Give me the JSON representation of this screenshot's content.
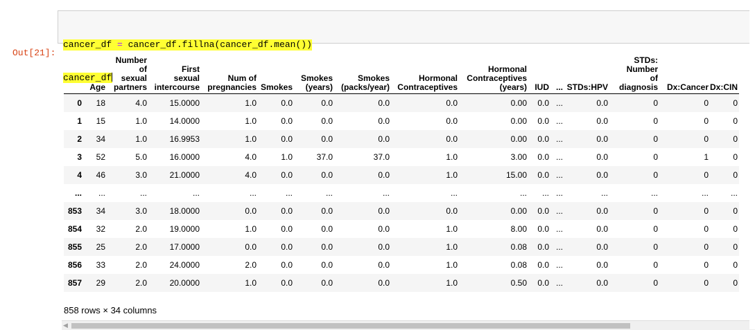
{
  "cell": {
    "line1_prefix": "cancer_df ",
    "line1_op": "=",
    "line1_rest": " cancer_df.fillna(cancer_df.mean())",
    "line2": "cancer_df"
  },
  "out_prompt": "Out[21]:",
  "table": {
    "headers": [
      {
        "lines": [
          ""
        ]
      },
      {
        "lines": [
          "Age"
        ]
      },
      {
        "lines": [
          "Number",
          "of",
          "sexual",
          "partners"
        ]
      },
      {
        "lines": [
          "First",
          "sexual",
          "intercourse"
        ]
      },
      {
        "lines": [
          "Num of",
          "pregnancies"
        ]
      },
      {
        "lines": [
          "Smokes"
        ]
      },
      {
        "lines": [
          "Smokes",
          "(years)"
        ]
      },
      {
        "lines": [
          "Smokes",
          "(packs/year)"
        ]
      },
      {
        "lines": [
          "Hormonal",
          "Contraceptives"
        ]
      },
      {
        "lines": [
          "Hormonal",
          "Contraceptives",
          "(years)"
        ]
      },
      {
        "lines": [
          "IUD"
        ]
      },
      {
        "lines": [
          "..."
        ]
      },
      {
        "lines": [
          "STDs:HPV"
        ]
      },
      {
        "lines": [
          "STDs:",
          "Number",
          "of",
          "diagnosis"
        ]
      },
      {
        "lines": [
          "Dx:Cancer"
        ]
      },
      {
        "lines": [
          "Dx:CIN"
        ]
      }
    ],
    "rows": [
      [
        "0",
        "18",
        "4.0",
        "15.0000",
        "1.0",
        "0.0",
        "0.0",
        "0.0",
        "0.0",
        "0.00",
        "0.0",
        "...",
        "0.0",
        "0",
        "0",
        "0"
      ],
      [
        "1",
        "15",
        "1.0",
        "14.0000",
        "1.0",
        "0.0",
        "0.0",
        "0.0",
        "0.0",
        "0.00",
        "0.0",
        "...",
        "0.0",
        "0",
        "0",
        "0"
      ],
      [
        "2",
        "34",
        "1.0",
        "16.9953",
        "1.0",
        "0.0",
        "0.0",
        "0.0",
        "0.0",
        "0.00",
        "0.0",
        "...",
        "0.0",
        "0",
        "0",
        "0"
      ],
      [
        "3",
        "52",
        "5.0",
        "16.0000",
        "4.0",
        "1.0",
        "37.0",
        "37.0",
        "1.0",
        "3.00",
        "0.0",
        "...",
        "0.0",
        "0",
        "1",
        "0"
      ],
      [
        "4",
        "46",
        "3.0",
        "21.0000",
        "4.0",
        "0.0",
        "0.0",
        "0.0",
        "1.0",
        "15.00",
        "0.0",
        "...",
        "0.0",
        "0",
        "0",
        "0"
      ],
      [
        "...",
        "...",
        "...",
        "...",
        "...",
        "...",
        "...",
        "...",
        "...",
        "...",
        "...",
        "...",
        "...",
        "...",
        "...",
        "..."
      ],
      [
        "853",
        "34",
        "3.0",
        "18.0000",
        "0.0",
        "0.0",
        "0.0",
        "0.0",
        "0.0",
        "0.00",
        "0.0",
        "...",
        "0.0",
        "0",
        "0",
        "0"
      ],
      [
        "854",
        "32",
        "2.0",
        "19.0000",
        "1.0",
        "0.0",
        "0.0",
        "0.0",
        "1.0",
        "8.00",
        "0.0",
        "...",
        "0.0",
        "0",
        "0",
        "0"
      ],
      [
        "855",
        "25",
        "2.0",
        "17.0000",
        "0.0",
        "0.0",
        "0.0",
        "0.0",
        "1.0",
        "0.08",
        "0.0",
        "...",
        "0.0",
        "0",
        "0",
        "0"
      ],
      [
        "856",
        "33",
        "2.0",
        "24.0000",
        "2.0",
        "0.0",
        "0.0",
        "0.0",
        "1.0",
        "0.08",
        "0.0",
        "...",
        "0.0",
        "0",
        "0",
        "0"
      ],
      [
        "857",
        "29",
        "2.0",
        "20.0000",
        "1.0",
        "0.0",
        "0.0",
        "0.0",
        "1.0",
        "0.50",
        "0.0",
        "...",
        "0.0",
        "0",
        "0",
        "0"
      ]
    ]
  },
  "footer": "858 rows × 34 columns",
  "scrollbar_arrow": "◀"
}
